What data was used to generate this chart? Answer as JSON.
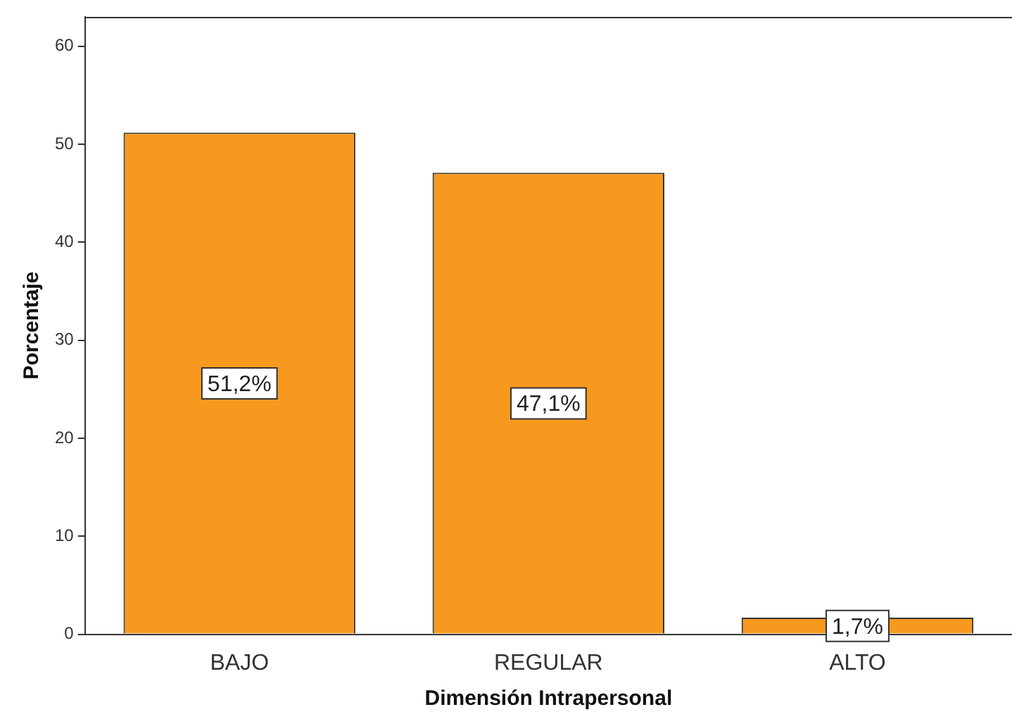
{
  "chart_data": {
    "type": "bar",
    "xlabel": "Dimensión Intrapersonal",
    "ylabel": "Porcentaje",
    "categories": [
      "BAJO",
      "REGULAR",
      "ALTO"
    ],
    "values": [
      51.2,
      47.1,
      1.7
    ],
    "value_labels": [
      "51,2%",
      "47,1%",
      "1,7%"
    ],
    "color": "#f7991f",
    "ylim": [
      0,
      63
    ],
    "yticks": [
      0,
      10,
      20,
      30,
      40,
      50,
      60
    ],
    "grid": false,
    "legend": false
  }
}
